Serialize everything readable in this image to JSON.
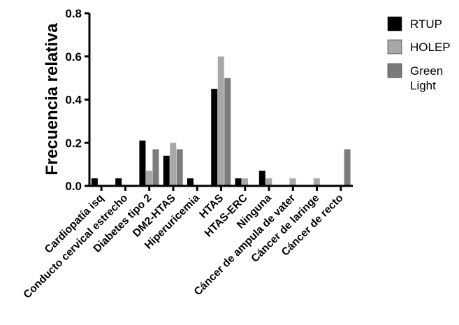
{
  "chart_data": {
    "type": "bar",
    "ylabel": "Frecuencia relativa",
    "xlabel": "",
    "title": "",
    "ylim": [
      0,
      0.8
    ],
    "yticks": [
      "0.0",
      "0.2",
      "0.4",
      "0.6",
      "0.8"
    ],
    "categories": [
      "Cardiopatía isq",
      "Conducto cervical estrecho",
      "Diabetes tipo 2",
      "DM2-HTAS",
      "Hiperuricemia",
      "HTAS",
      "HTAS-ERC",
      "Ninguna",
      "Cáncer de ampula de vater",
      "Cáncer de laringe",
      "Cáncer de recto"
    ],
    "series": [
      {
        "name": "RTUP",
        "color": "#000000",
        "values": [
          0.035,
          0.035,
          0.21,
          0.14,
          0.035,
          0.45,
          0.035,
          0.07,
          0.0,
          0.0,
          0.0
        ]
      },
      {
        "name": "HOLEP",
        "color": "#a8a8a8",
        "values": [
          0.0,
          0.0,
          0.07,
          0.2,
          0.0,
          0.6,
          0.035,
          0.035,
          0.035,
          0.035,
          0.0
        ]
      },
      {
        "name": "Green Light",
        "legend_lines": [
          "Green",
          "Light"
        ],
        "color": "#7c7c7c",
        "values": [
          0.0,
          0.0,
          0.17,
          0.17,
          0.0,
          0.5,
          0.0,
          0.0,
          0.0,
          0.0,
          0.17
        ]
      }
    ],
    "legend_position": "right",
    "grid": false
  }
}
